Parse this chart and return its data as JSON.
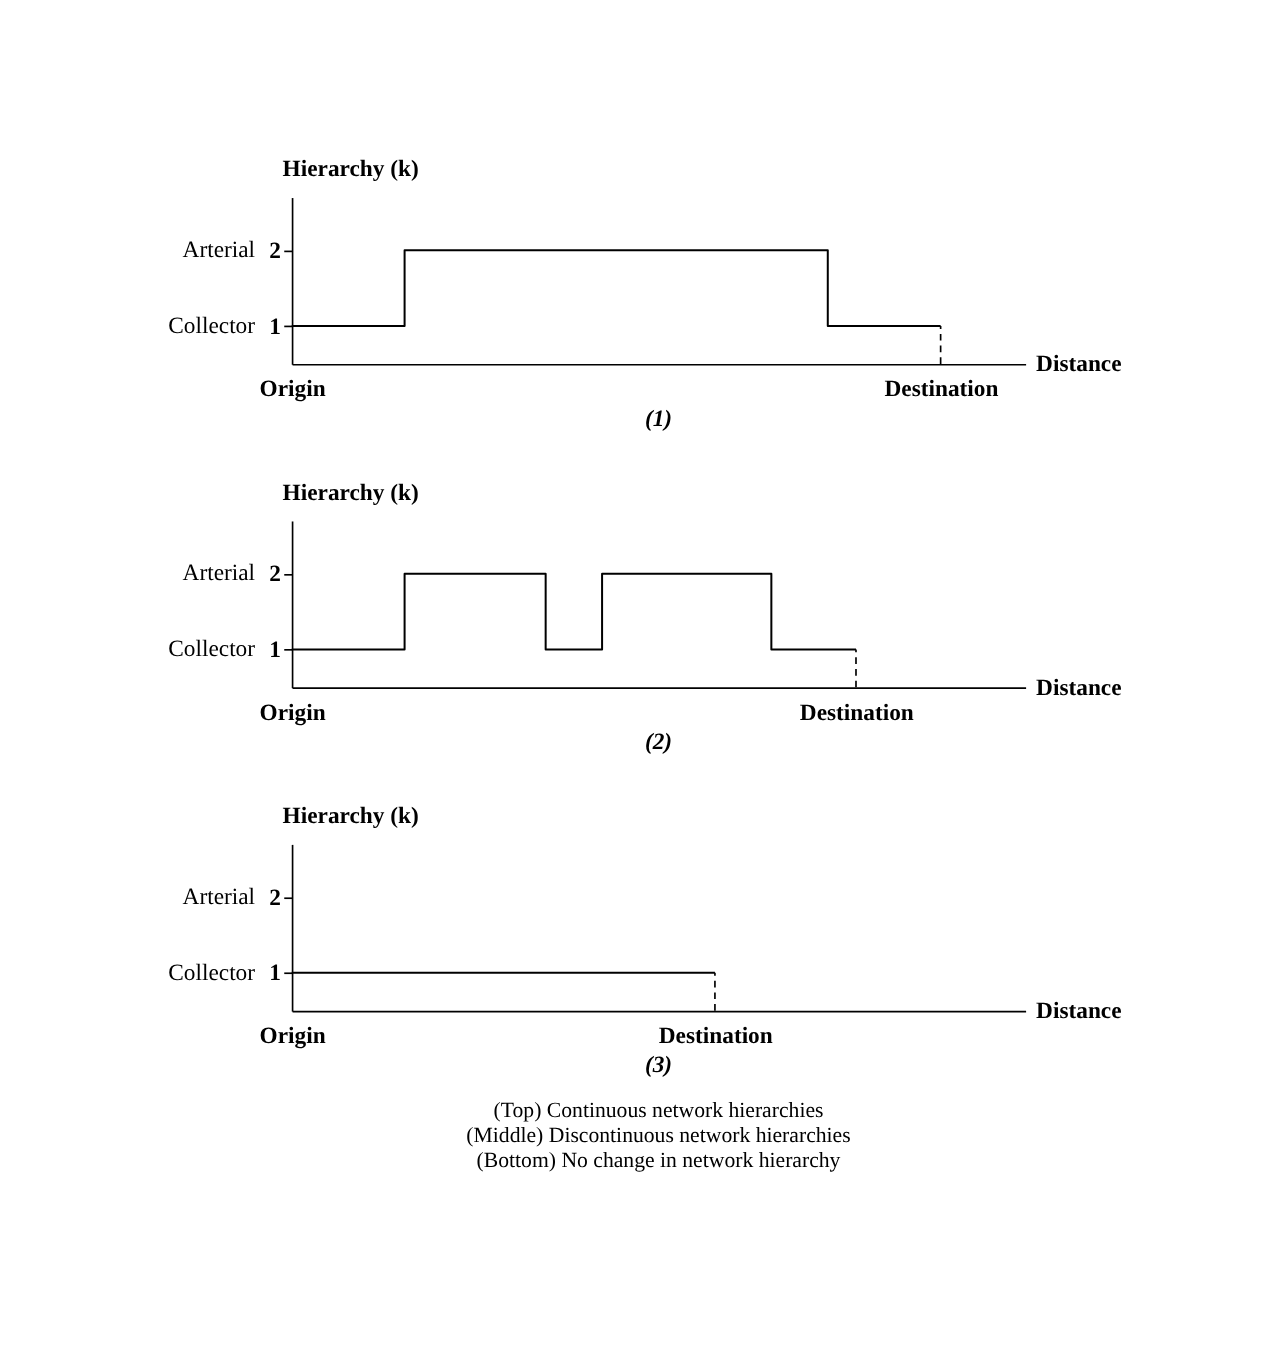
{
  "chart_data": [
    {
      "type": "step",
      "ylabel": "Hierarchy (k)",
      "xlabel": "Distance",
      "ylim": [
        0.5,
        2.7
      ],
      "yticks": [
        1,
        2
      ],
      "color": "#000000",
      "categories": [
        "Origin",
        null,
        null,
        null,
        null,
        null,
        null,
        null,
        null,
        null,
        null,
        null,
        null,
        null,
        null,
        null,
        null,
        null,
        null,
        null,
        null,
        null,
        null,
        "Destination",
        null,
        null,
        null
      ],
      "values": [
        1,
        1,
        1,
        1,
        2,
        2,
        2,
        2,
        2,
        2,
        2,
        2,
        2,
        2,
        2,
        2,
        2,
        2,
        2,
        1,
        1,
        1,
        1,
        1,
        null,
        null,
        null
      ],
      "ref_lines": [
        {
          "axis": "x",
          "value": "Destination",
          "line_style": "dashed",
          "color": "#000000"
        }
      ],
      "annotations": [
        "(1)",
        "Collector",
        "Arterial"
      ]
    },
    {
      "type": "step",
      "ylabel": "Hierarchy (k)",
      "xlabel": "Distance",
      "ylim": [
        0.5,
        2.7
      ],
      "yticks": [
        1,
        2
      ],
      "color": "#000000",
      "categories": [
        "Origin",
        null,
        null,
        null,
        null,
        null,
        null,
        null,
        null,
        null,
        null,
        null,
        null,
        null,
        null,
        null,
        null,
        null,
        null,
        null,
        "Destination",
        null,
        null,
        null,
        null,
        null,
        null
      ],
      "values": [
        1,
        1,
        1,
        1,
        2,
        2,
        2,
        2,
        2,
        1,
        1,
        2,
        2,
        2,
        2,
        2,
        2,
        1,
        1,
        1,
        1,
        null,
        null,
        null,
        null,
        null,
        null
      ],
      "ref_lines": [
        {
          "axis": "x",
          "value": "Destination",
          "line_style": "dashed",
          "color": "#000000"
        }
      ],
      "annotations": [
        "(2)",
        "Collector",
        "Arterial"
      ]
    },
    {
      "type": "step",
      "ylabel": "Hierarchy (k)",
      "xlabel": "Distance",
      "ylim": [
        0.5,
        2.7
      ],
      "yticks": [
        1,
        2
      ],
      "color": "#000000",
      "categories": [
        "Origin",
        null,
        null,
        null,
        null,
        null,
        null,
        null,
        null,
        null,
        null,
        null,
        null,
        null,
        null,
        "Destination",
        null,
        null,
        null,
        null,
        null,
        null,
        null,
        null,
        null,
        null,
        null
      ],
      "values": [
        1,
        1,
        1,
        1,
        1,
        1,
        1,
        1,
        1,
        1,
        1,
        1,
        1,
        1,
        1,
        1,
        null,
        null,
        null,
        null,
        null,
        null,
        null,
        null,
        null,
        null,
        null
      ],
      "ref_lines": [
        {
          "axis": "x",
          "value": "Destination",
          "line_style": "dashed",
          "color": "#000000"
        }
      ],
      "annotations": [
        "(3)",
        "Collector",
        "Arterial",
        "(Top) Continuous network hierarchies",
        "(Middle) Discontinuous network hierarchies",
        "(Bottom) No change in network hierarchy"
      ]
    }
  ]
}
